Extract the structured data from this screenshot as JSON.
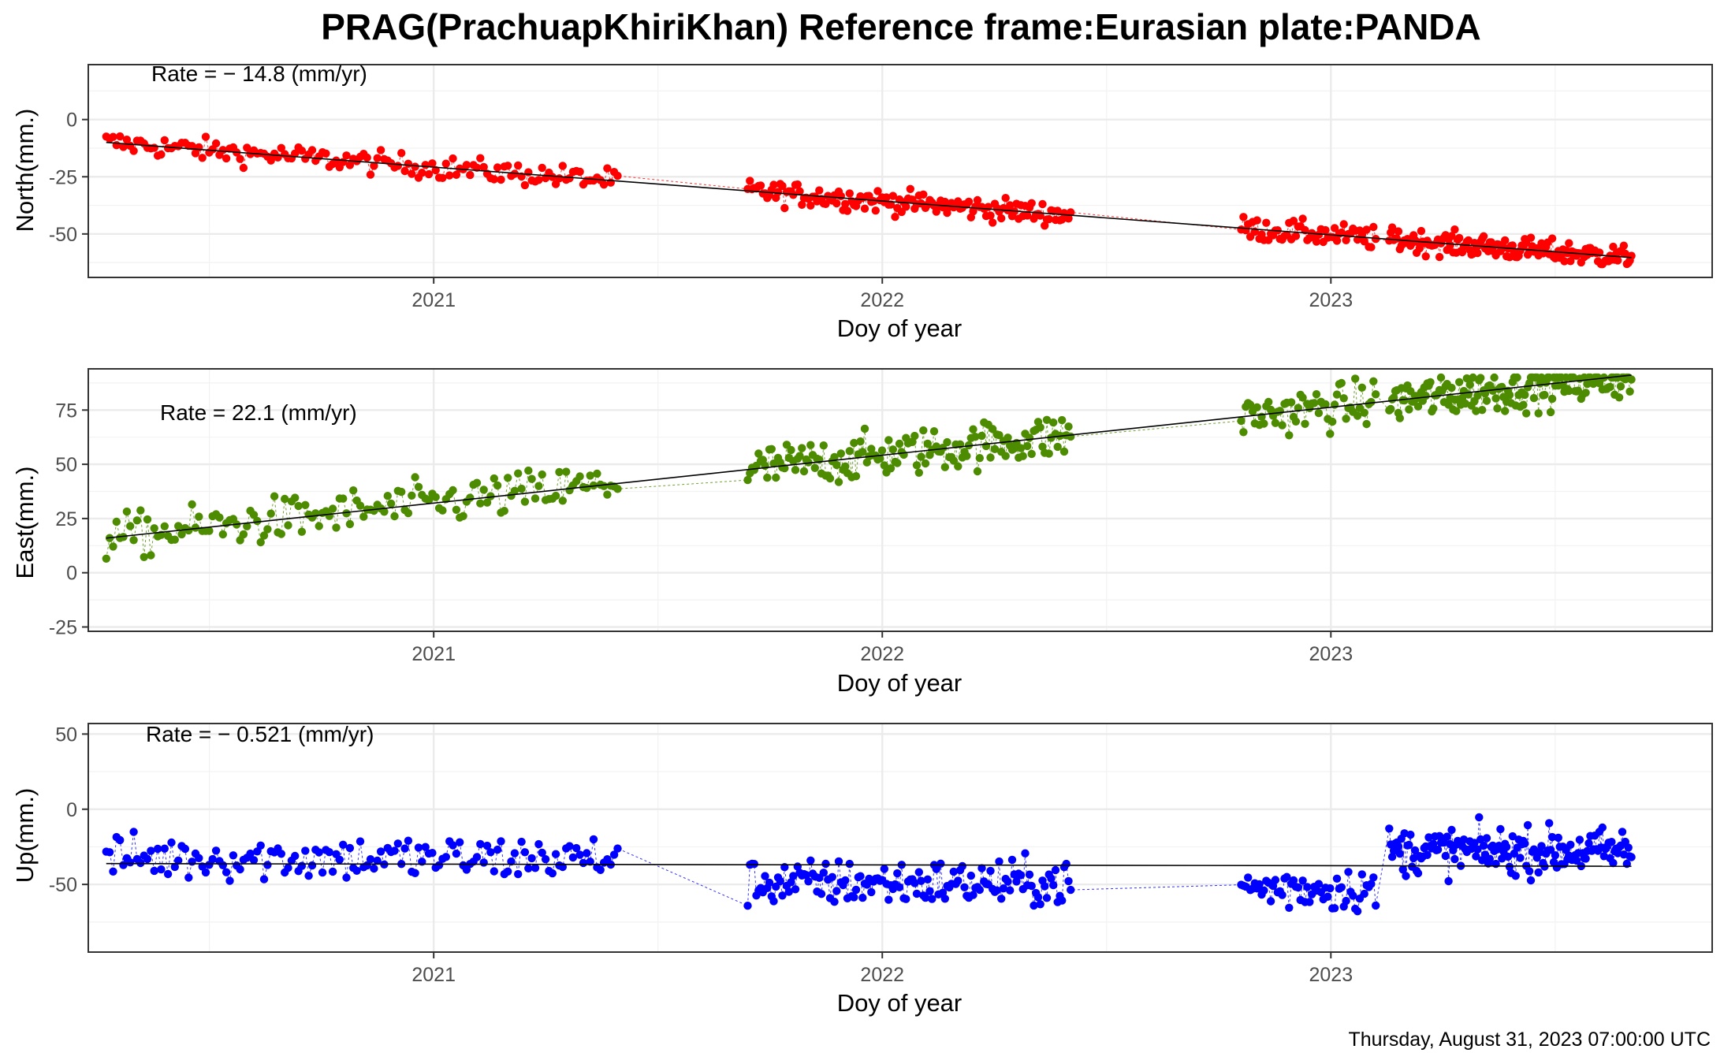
{
  "title": "PRAG(PrachuapKhiriKhan) Reference frame:Eurasian plate:PANDA",
  "footer": "Thursday, August 31, 2023 07:00:00 UTC",
  "chart_data": [
    {
      "type": "scatter",
      "name": "north",
      "ylabel": "North(mm.)",
      "xlabel": "Doy of year",
      "rate_label": "Rate = − 14.8 (mm/yr)",
      "rate": -14.8,
      "intercept_at_2020": -6,
      "color": "#ff0000",
      "noise": 3.6,
      "xlim": [
        2020.23,
        2023.85
      ],
      "ylim": [
        -69,
        24
      ],
      "yticks": [
        0,
        -25,
        -50
      ],
      "xticks": [
        2021,
        2022,
        2023
      ],
      "grid": true,
      "segments": [
        {
          "x0": 2020.27,
          "x1": 2021.41,
          "n": 150
        },
        {
          "x0": 2021.7,
          "x1": 2022.42,
          "n": 150
        },
        {
          "x0": 2022.8,
          "x1": 2023.1,
          "n": 60
        },
        {
          "x0": 2023.13,
          "x1": 2023.67,
          "n": 160
        }
      ]
    },
    {
      "type": "scatter",
      "name": "east",
      "ylabel": "East(mm.)",
      "xlabel": "Doy of year",
      "rate_label": "Rate = 22.1 (mm/yr)",
      "rate": 22.1,
      "intercept_at_2020": 10,
      "color": "#4d8c00",
      "noise": 7.5,
      "xlim": [
        2020.23,
        2023.85
      ],
      "ylim": [
        -27,
        94
      ],
      "yticks": [
        75,
        50,
        25,
        0,
        -25
      ],
      "xticks": [
        2021,
        2022,
        2023
      ],
      "grid": true,
      "segments": [
        {
          "x0": 2020.27,
          "x1": 2021.41,
          "n": 150
        },
        {
          "x0": 2021.7,
          "x1": 2022.42,
          "n": 150
        },
        {
          "x0": 2022.8,
          "x1": 2023.1,
          "n": 60
        },
        {
          "x0": 2023.13,
          "x1": 2023.67,
          "n": 160
        }
      ]
    },
    {
      "type": "scatter",
      "name": "up",
      "ylabel": "Up(mm.)",
      "xlabel": "Doy of year",
      "rate_label": "Rate = − 0.521 (mm/yr)",
      "rate": -0.521,
      "intercept_at_2020": -36,
      "color": "#0000ff",
      "noise": 11,
      "xlim": [
        2020.23,
        2023.85
      ],
      "ylim": [
        -95,
        57
      ],
      "yticks": [
        50,
        0,
        -50
      ],
      "xticks": [
        2021,
        2022,
        2023
      ],
      "grid": true,
      "segments": [
        {
          "x0": 2020.27,
          "x1": 2021.41,
          "n": 150,
          "offset": 4
        },
        {
          "x0": 2021.7,
          "x1": 2022.42,
          "n": 150,
          "offset": -12
        },
        {
          "x0": 2022.8,
          "x1": 2023.1,
          "n": 60,
          "offset": -15
        },
        {
          "x0": 2023.13,
          "x1": 2023.67,
          "n": 160,
          "offset": 10
        }
      ]
    }
  ]
}
